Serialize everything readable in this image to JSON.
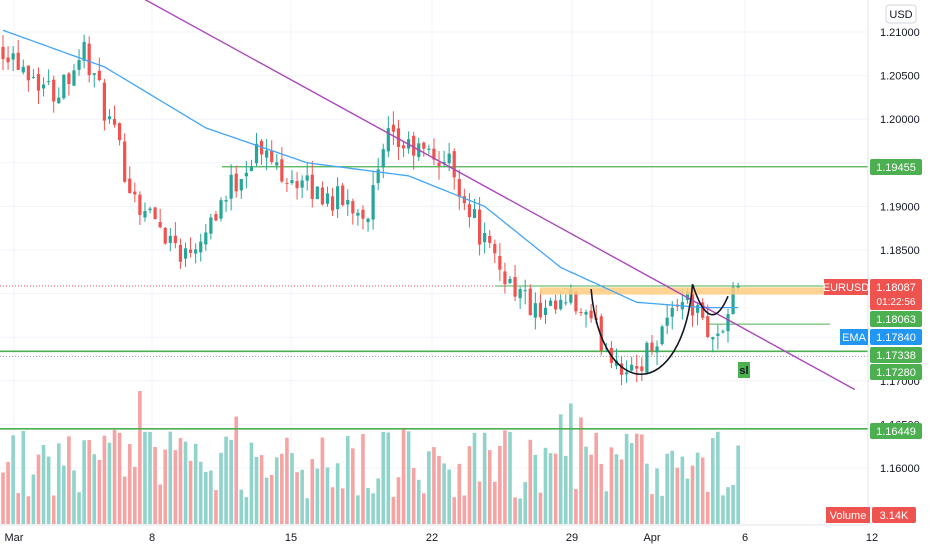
{
  "currency": "USD",
  "colors": {
    "up": "#26a69a",
    "down": "#ef5350",
    "volume_up": "#8fd3cb",
    "volume_down": "#f5a3a3",
    "ema": "#42a5f5",
    "trendline": "#ab47bc",
    "level": "#4caf50",
    "resistance_zone": "#ffcc80",
    "pattern": "#131722",
    "axis_text": "#131722",
    "grid": "#f0f3fa",
    "price_badge": "#ef5350",
    "ema_badge": "#2196f3",
    "level_badge": "#4caf50"
  },
  "axis": {
    "x_ticks": [
      "Mar",
      "8",
      "15",
      "22",
      "29",
      "Apr",
      "6",
      "12"
    ],
    "y_ticks": [
      "1.21000",
      "1.20500",
      "1.20000",
      "1.19500",
      "1.19000",
      "1.18500",
      "1.18000",
      "1.17500",
      "1.17000",
      "1.16500",
      "1.16000"
    ]
  },
  "badges": {
    "symbol": "EURUSD",
    "price": "1.18087",
    "countdown": "01:22:56",
    "resistance": "1.18063",
    "ema_label": "EMA",
    "ema_value": "1.17840",
    "level_1": "1.19455",
    "level_2": "1.17338",
    "level_3": "1.17280",
    "level_4": "1.16449",
    "volume_label": "Volume",
    "volume_value": "3.14K",
    "sl": "sl"
  },
  "chart_data": {
    "type": "candlestick",
    "symbol": "EURUSD",
    "ylim": [
      1.155,
      1.215
    ],
    "x_range_bars": [
      0,
      145
    ],
    "ohlc_summary": [
      {
        "bar": 0,
        "close": 1.2085
      },
      {
        "bar": 10,
        "close": 1.203
      },
      {
        "bar": 16,
        "close": 1.208
      },
      {
        "bar": 26,
        "close": 1.191
      },
      {
        "bar": 36,
        "close": 1.1845
      },
      {
        "bar": 50,
        "close": 1.1965
      },
      {
        "bar": 60,
        "close": 1.192
      },
      {
        "bar": 72,
        "close": 1.1895
      },
      {
        "bar": 76,
        "close": 1.1975
      },
      {
        "bar": 88,
        "close": 1.195
      },
      {
        "bar": 96,
        "close": 1.1845
      },
      {
        "bar": 106,
        "close": 1.177
      },
      {
        "bar": 112,
        "close": 1.179
      },
      {
        "bar": 124,
        "close": 1.1705
      },
      {
        "bar": 134,
        "close": 1.18
      },
      {
        "bar": 141,
        "close": 1.1745
      },
      {
        "bar": 145,
        "close": 1.1809
      }
    ],
    "ema_summary": [
      {
        "bar": 0,
        "value": 1.2102
      },
      {
        "bar": 20,
        "value": 1.206
      },
      {
        "bar": 40,
        "value": 1.199
      },
      {
        "bar": 60,
        "value": 1.195
      },
      {
        "bar": 80,
        "value": 1.1935
      },
      {
        "bar": 95,
        "value": 1.19
      },
      {
        "bar": 110,
        "value": 1.183
      },
      {
        "bar": 125,
        "value": 1.179
      },
      {
        "bar": 138,
        "value": 1.1784
      },
      {
        "bar": 145,
        "value": 1.1784
      }
    ],
    "levels": [
      1.19455,
      1.17338,
      1.1728,
      1.16449
    ],
    "resistance_zone": [
      1.18,
      1.1806
    ],
    "last_price": 1.18087,
    "ema_last": 1.1784,
    "trendline": [
      {
        "bar": 24,
        "price": 1.215
      },
      {
        "bar": 168,
        "price": 1.169
      }
    ],
    "cup": {
      "start_bar": 116,
      "bottom_bar": 126,
      "end_bar": 136,
      "rim": 1.1805,
      "bottom": 1.1697
    },
    "handle": {
      "start_bar": 136,
      "end_bar": 143,
      "low": 1.176
    },
    "volume_last": "3.14K"
  }
}
